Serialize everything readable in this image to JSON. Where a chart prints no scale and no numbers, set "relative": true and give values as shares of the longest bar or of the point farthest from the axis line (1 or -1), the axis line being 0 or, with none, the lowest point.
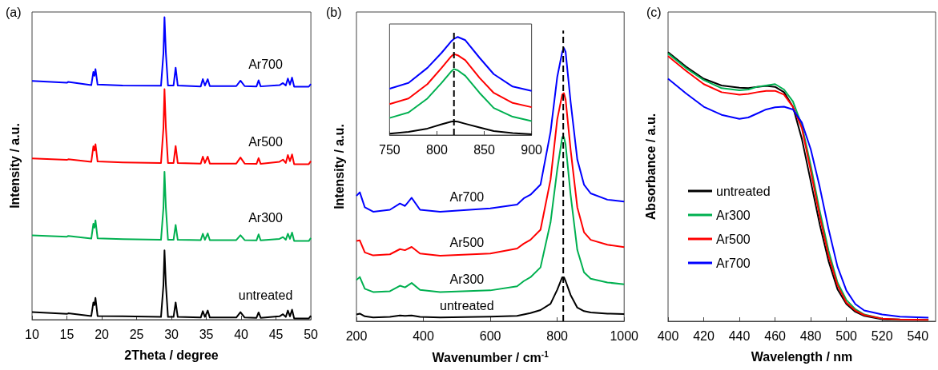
{
  "chart_data": [
    {
      "type": "line",
      "title": "(a)",
      "xlabel": "2Theta / degree",
      "ylabel": "Intensity / a.u.",
      "relative": true,
      "marker": "none",
      "legend": false,
      "grid": false,
      "xlim": [
        10,
        50
      ],
      "xticks": [
        10,
        15,
        20,
        25,
        30,
        35,
        40,
        45,
        50
      ],
      "x": [
        10,
        15,
        15.2,
        18.5,
        18.8,
        18.95,
        19.1,
        19.4,
        23,
        28.5,
        28.85,
        29.0,
        29.2,
        29.5,
        30.3,
        30.6,
        30.9,
        34.2,
        34.5,
        34.8,
        35.2,
        35.5,
        39.3,
        39.9,
        40.5,
        42.2,
        42.5,
        42.8,
        45.5,
        46,
        46.4,
        46.7,
        47,
        47.3,
        47.6,
        49.7,
        50
      ],
      "series": [
        {
          "name": "Ar700",
          "color": "#0000ff",
          "values": [
            0.789,
            0.783,
            0.786,
            0.775,
            0.819,
            0.806,
            0.828,
            0.777,
            0.774,
            0.773,
            0.881,
            1.0,
            0.881,
            0.774,
            0.774,
            0.833,
            0.774,
            0.771,
            0.795,
            0.774,
            0.795,
            0.772,
            0.772,
            0.79,
            0.772,
            0.771,
            0.791,
            0.771,
            0.775,
            0.782,
            0.774,
            0.797,
            0.777,
            0.8,
            0.77,
            0.77,
            0.779
          ]
        },
        {
          "name": "Ar500",
          "color": "#ff0000",
          "values": [
            0.533,
            0.528,
            0.53,
            0.522,
            0.573,
            0.559,
            0.58,
            0.523,
            0.52,
            0.518,
            0.634,
            0.762,
            0.634,
            0.518,
            0.518,
            0.574,
            0.518,
            0.516,
            0.539,
            0.518,
            0.539,
            0.516,
            0.516,
            0.536,
            0.516,
            0.515,
            0.534,
            0.515,
            0.522,
            0.529,
            0.518,
            0.544,
            0.524,
            0.546,
            0.514,
            0.514,
            0.524
          ]
        },
        {
          "name": "Ar300",
          "color": "#00b050",
          "values": [
            0.279,
            0.274,
            0.277,
            0.268,
            0.317,
            0.304,
            0.328,
            0.269,
            0.266,
            0.264,
            0.37,
            0.489,
            0.37,
            0.264,
            0.264,
            0.313,
            0.264,
            0.263,
            0.284,
            0.264,
            0.285,
            0.263,
            0.263,
            0.279,
            0.263,
            0.262,
            0.282,
            0.262,
            0.267,
            0.273,
            0.264,
            0.284,
            0.267,
            0.288,
            0.26,
            0.26,
            0.27
          ]
        },
        {
          "name": "untreated",
          "color": "#000000",
          "values": [
            0.025,
            0.019,
            0.021,
            0.012,
            0.057,
            0.048,
            0.072,
            0.012,
            0.011,
            0.009,
            0.115,
            0.229,
            0.115,
            0.009,
            0.009,
            0.057,
            0.009,
            0.007,
            0.028,
            0.009,
            0.03,
            0.007,
            0.007,
            0.025,
            0.007,
            0.006,
            0.024,
            0.006,
            0.011,
            0.018,
            0.009,
            0.03,
            0.011,
            0.033,
            0.004,
            0.004,
            0.013
          ]
        }
      ]
    },
    {
      "type": "line",
      "title": "(b)",
      "xlabel": "Wavenumber / cm$^{-1}$",
      "ylabel": "Intensity / a.u.",
      "relative": true,
      "marker": "none",
      "legend": false,
      "grid": false,
      "xlim": [
        200,
        1000
      ],
      "xticks": [
        200,
        400,
        600,
        800,
        1000
      ],
      "ref_lines": [
        {
          "axis": "x",
          "value": 818,
          "color": "#000000",
          "line_style": "dashed"
        }
      ],
      "x": [
        200,
        210,
        225,
        250,
        300,
        330,
        345,
        365,
        390,
        450,
        600,
        680,
        700,
        720,
        750,
        780,
        800,
        815,
        820,
        825,
        840,
        860,
        880,
        900,
        950,
        1000
      ],
      "series": [
        {
          "name": "Ar700",
          "color": "#0000ff",
          "values": [
            0.459,
            0.472,
            0.417,
            0.401,
            0.408,
            0.431,
            0.422,
            0.452,
            0.408,
            0.401,
            0.413,
            0.427,
            0.45,
            0.463,
            0.5,
            0.693,
            0.894,
            0.986,
            1.0,
            0.986,
            0.803,
            0.592,
            0.5,
            0.468,
            0.445,
            0.438
          ]
        },
        {
          "name": "Ar500",
          "color": "#ff0000",
          "values": [
            0.294,
            0.296,
            0.252,
            0.241,
            0.245,
            0.264,
            0.26,
            0.272,
            0.248,
            0.24,
            0.248,
            0.266,
            0.284,
            0.298,
            0.335,
            0.518,
            0.739,
            0.83,
            0.835,
            0.812,
            0.628,
            0.417,
            0.326,
            0.298,
            0.28,
            0.271
          ]
        },
        {
          "name": "Ar300",
          "color": "#00b050",
          "values": [
            0.151,
            0.162,
            0.119,
            0.107,
            0.11,
            0.13,
            0.124,
            0.14,
            0.115,
            0.107,
            0.113,
            0.128,
            0.147,
            0.161,
            0.197,
            0.362,
            0.555,
            0.674,
            0.674,
            0.647,
            0.463,
            0.261,
            0.179,
            0.156,
            0.142,
            0.135
          ]
        },
        {
          "name": "untreated",
          "color": "#000000",
          "values": [
            0.025,
            0.028,
            0.018,
            0.014,
            0.016,
            0.021,
            0.02,
            0.021,
            0.016,
            0.014,
            0.017,
            0.02,
            0.025,
            0.03,
            0.041,
            0.064,
            0.115,
            0.161,
            0.161,
            0.147,
            0.096,
            0.05,
            0.037,
            0.032,
            0.028,
            0.026
          ]
        }
      ]
    },
    {
      "type": "line",
      "relative": true,
      "marker": "none",
      "legend": false,
      "grid": false,
      "xlim": [
        750,
        900
      ],
      "xticks": [
        750,
        800,
        850,
        900
      ],
      "ref_lines": [
        {
          "axis": "x",
          "value": 818,
          "color": "#000000",
          "line_style": "dashed"
        }
      ],
      "x": [
        750,
        770,
        790,
        805,
        815,
        818,
        822,
        830,
        845,
        860,
        880,
        900
      ],
      "series": [
        {
          "color": "#0000ff",
          "values": [
            0.473,
            0.532,
            0.685,
            0.839,
            0.954,
            0.98,
            1.0,
            0.967,
            0.788,
            0.621,
            0.494,
            0.45
          ]
        },
        {
          "color": "#ff0000",
          "values": [
            0.315,
            0.373,
            0.519,
            0.685,
            0.801,
            0.826,
            0.813,
            0.762,
            0.583,
            0.43,
            0.327,
            0.284
          ]
        },
        {
          "color": "#00b050",
          "values": [
            0.174,
            0.23,
            0.373,
            0.532,
            0.647,
            0.673,
            0.66,
            0.604,
            0.43,
            0.276,
            0.187,
            0.143
          ]
        },
        {
          "color": "#000000",
          "values": [
            0.015,
            0.033,
            0.066,
            0.11,
            0.136,
            0.141,
            0.136,
            0.115,
            0.077,
            0.041,
            0.02,
            0.008
          ]
        }
      ]
    },
    {
      "type": "line",
      "title": "(c)",
      "xlabel": "Wavelength / nm",
      "ylabel": "Absorbance / a.u.",
      "relative": true,
      "marker": "none",
      "legend": "bottom left",
      "grid": false,
      "xlim": [
        400,
        550
      ],
      "xticks": [
        400,
        420,
        440,
        460,
        480,
        500,
        520,
        540
      ],
      "x": [
        400,
        410,
        420,
        430,
        440,
        445,
        450,
        455,
        460,
        465,
        470,
        475,
        480,
        485,
        490,
        495,
        500,
        505,
        510,
        520,
        530,
        546
      ],
      "series": [
        {
          "name": "untreated",
          "color": "#000000",
          "values": [
            1.0,
            0.946,
            0.901,
            0.876,
            0.868,
            0.866,
            0.871,
            0.874,
            0.871,
            0.851,
            0.797,
            0.678,
            0.52,
            0.361,
            0.223,
            0.119,
            0.064,
            0.035,
            0.02,
            0.007,
            0.005,
            0.005
          ]
        },
        {
          "name": "Ar300",
          "color": "#00b050",
          "values": [
            0.995,
            0.941,
            0.896,
            0.866,
            0.858,
            0.861,
            0.871,
            0.876,
            0.881,
            0.861,
            0.817,
            0.728,
            0.579,
            0.411,
            0.262,
            0.144,
            0.079,
            0.045,
            0.025,
            0.01,
            0.007,
            0.005
          ]
        },
        {
          "name": "Ar500",
          "color": "#ff0000",
          "values": [
            0.985,
            0.931,
            0.881,
            0.851,
            0.842,
            0.845,
            0.851,
            0.856,
            0.856,
            0.842,
            0.797,
            0.718,
            0.559,
            0.391,
            0.243,
            0.134,
            0.069,
            0.04,
            0.023,
            0.01,
            0.007,
            0.005
          ]
        },
        {
          "name": "Ar700",
          "color": "#0000ff",
          "values": [
            0.901,
            0.847,
            0.797,
            0.767,
            0.752,
            0.757,
            0.772,
            0.787,
            0.795,
            0.797,
            0.787,
            0.738,
            0.639,
            0.5,
            0.342,
            0.203,
            0.114,
            0.064,
            0.04,
            0.025,
            0.017,
            0.013
          ]
        }
      ]
    }
  ]
}
